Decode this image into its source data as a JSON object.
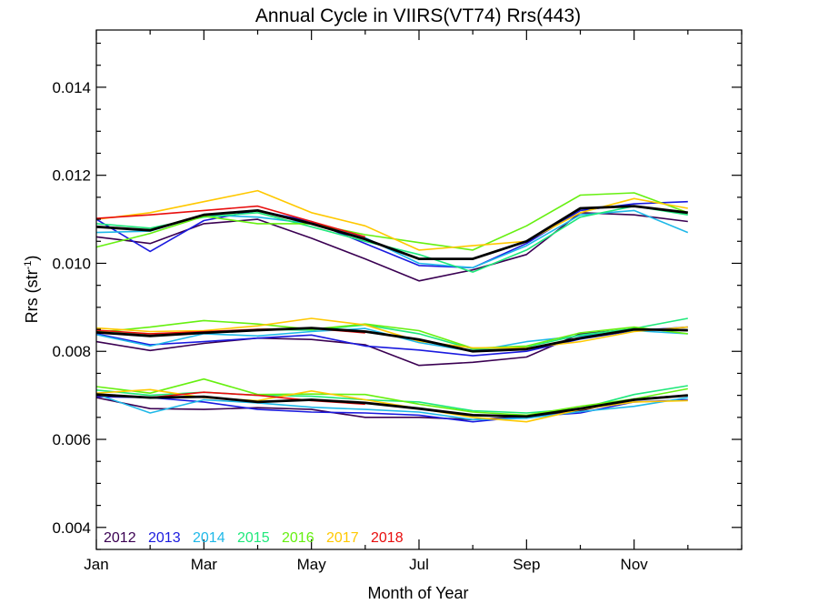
{
  "chart_data": {
    "type": "line",
    "title": "Annual Cycle in VIIRS(VT74) Rrs(443)",
    "xlabel": "Month of Year",
    "ylabel_main": "Rrs (str",
    "ylabel_sup": "-1",
    "ylabel_close": ")",
    "xlim": [
      1,
      13
    ],
    "ylim": [
      0.0035,
      0.0153
    ],
    "x_ticks": [
      {
        "x": 1,
        "label": "Jan"
      },
      {
        "x": 3,
        "label": "Mar"
      },
      {
        "x": 5,
        "label": "May"
      },
      {
        "x": 7,
        "label": "Jul"
      },
      {
        "x": 9,
        "label": "Sep"
      },
      {
        "x": 11,
        "label": "Nov"
      }
    ],
    "y_ticks": [
      {
        "y": 0.004,
        "label": "0.004"
      },
      {
        "y": 0.006,
        "label": "0.006"
      },
      {
        "y": 0.008,
        "label": "0.008"
      },
      {
        "y": 0.01,
        "label": "0.010"
      },
      {
        "y": 0.012,
        "label": "0.012"
      },
      {
        "y": 0.014,
        "label": "0.014"
      }
    ],
    "x": [
      1,
      2,
      3,
      4,
      5,
      6,
      7,
      8,
      9,
      10,
      11,
      12
    ],
    "groups": [
      {
        "series": [
          {
            "name": "2012",
            "color": "#3a0052",
            "values": [
              0.0106,
              0.01045,
              0.0109,
              0.011,
              0.01057,
              0.0101,
              0.0096,
              0.00985,
              0.0102,
              0.01115,
              0.0111,
              0.01095
            ]
          },
          {
            "name": "2013",
            "color": "#1a1adf",
            "values": [
              0.011,
              0.01027,
              0.01097,
              0.0112,
              0.01095,
              0.01045,
              0.00995,
              0.0099,
              0.01045,
              0.0112,
              0.01135,
              0.0114
            ]
          },
          {
            "name": "2014",
            "color": "#1fb8e8",
            "values": [
              0.0107,
              0.01073,
              0.0111,
              0.01105,
              0.0109,
              0.01058,
              0.01,
              0.0099,
              0.0104,
              0.0111,
              0.0112,
              0.0107
            ]
          },
          {
            "name": "2015",
            "color": "#1ee87a",
            "values": [
              0.0109,
              0.0108,
              0.01105,
              0.01115,
              0.01083,
              0.0105,
              0.0102,
              0.0098,
              0.0103,
              0.01105,
              0.0113,
              0.0111
            ]
          },
          {
            "name": "2016",
            "color": "#66f010",
            "values": [
              0.01037,
              0.01068,
              0.01107,
              0.0109,
              0.0109,
              0.01065,
              0.01047,
              0.0103,
              0.01085,
              0.01155,
              0.0116,
              0.01115
            ]
          },
          {
            "name": "2017",
            "color": "#ffc800",
            "values": [
              0.011,
              0.01115,
              0.0114,
              0.01165,
              0.01115,
              0.01085,
              0.0103,
              0.0104,
              0.0105,
              0.01115,
              0.01147,
              0.01125
            ]
          },
          {
            "name": "2018",
            "color": "#e80d0d",
            "values": [
              0.01102,
              0.0111,
              0.0112,
              0.0113,
              0.01095,
              0.0106
            ]
          },
          {
            "name": "",
            "color": "#000000",
            "width": 2.8,
            "values": [
              0.01083,
              0.01075,
              0.0111,
              0.0112,
              0.0109,
              0.01055,
              0.0101,
              0.0101,
              0.0105,
              0.01125,
              0.0113,
              0.01115
            ]
          }
        ]
      },
      {
        "series": [
          {
            "name": "2012",
            "color": "#3a0052",
            "values": [
              0.00822,
              0.00802,
              0.00818,
              0.0083,
              0.00827,
              0.00815,
              0.00768,
              0.00775,
              0.00787,
              0.0084,
              0.0085,
              0.00847
            ]
          },
          {
            "name": "2013",
            "color": "#1a1adf",
            "values": [
              0.0084,
              0.00815,
              0.00822,
              0.0083,
              0.00837,
              0.00812,
              0.00803,
              0.0079,
              0.008,
              0.00828,
              0.00847,
              0.00855
            ]
          },
          {
            "name": "2014",
            "color": "#1fb8e8",
            "values": [
              0.00838,
              0.00812,
              0.0084,
              0.00835,
              0.00845,
              0.00852,
              0.0082,
              0.008,
              0.00822,
              0.00835,
              0.00847,
              0.0084
            ]
          },
          {
            "name": "2015",
            "color": "#1ee87a",
            "values": [
              0.00845,
              0.0084,
              0.00843,
              0.0085,
              0.00848,
              0.0086,
              0.0084,
              0.00805,
              0.0081,
              0.00837,
              0.00852,
              0.00875
            ]
          },
          {
            "name": "2016",
            "color": "#66f010",
            "values": [
              0.00843,
              0.00855,
              0.0087,
              0.00862,
              0.0085,
              0.00862,
              0.00847,
              0.00807,
              0.00812,
              0.00842,
              0.00855,
              0.0084
            ]
          },
          {
            "name": "2017",
            "color": "#ffc800",
            "values": [
              0.00853,
              0.00845,
              0.00847,
              0.00858,
              0.00875,
              0.0086,
              0.00823,
              0.00808,
              0.00808,
              0.00822,
              0.00845,
              0.00855
            ]
          },
          {
            "name": "2018",
            "color": "#e80d0d",
            "values": [
              0.00848,
              0.0084,
              0.00845,
              0.0085,
              0.00852,
              0.00842
            ]
          },
          {
            "name": "",
            "color": "#000000",
            "width": 2.8,
            "values": [
              0.00843,
              0.00835,
              0.00842,
              0.00848,
              0.00853,
              0.00845,
              0.00827,
              0.008,
              0.00805,
              0.0083,
              0.0085,
              0.00848
            ]
          }
        ]
      },
      {
        "series": [
          {
            "name": "2012",
            "color": "#3a0052",
            "values": [
              0.00695,
              0.0067,
              0.00668,
              0.00672,
              0.00668,
              0.0065,
              0.0065,
              0.00645,
              0.00652,
              0.00665,
              0.00692,
              0.007
            ]
          },
          {
            "name": "2013",
            "color": "#1a1adf",
            "values": [
              0.00697,
              0.00695,
              0.00685,
              0.00668,
              0.00662,
              0.0066,
              0.00655,
              0.0064,
              0.00652,
              0.0066,
              0.00685,
              0.0069
            ]
          },
          {
            "name": "2014",
            "color": "#1fb8e8",
            "values": [
              0.00703,
              0.0066,
              0.0069,
              0.00683,
              0.00673,
              0.00668,
              0.00662,
              0.00645,
              0.00648,
              0.00663,
              0.00675,
              0.00695
            ]
          },
          {
            "name": "2015",
            "color": "#1ee87a",
            "values": [
              0.00712,
              0.007,
              0.00707,
              0.007,
              0.00698,
              0.0069,
              0.00685,
              0.00665,
              0.0066,
              0.0067,
              0.00702,
              0.00722
            ]
          },
          {
            "name": "2016",
            "color": "#66f010",
            "values": [
              0.0072,
              0.00705,
              0.00737,
              0.00702,
              0.00703,
              0.00702,
              0.0068,
              0.00662,
              0.00655,
              0.00675,
              0.00692,
              0.00715
            ]
          },
          {
            "name": "2017",
            "color": "#ffc800",
            "values": [
              0.00705,
              0.00713,
              0.00695,
              0.00688,
              0.0071,
              0.0069,
              0.0067,
              0.0065,
              0.0064,
              0.00668,
              0.00685,
              0.00688
            ]
          },
          {
            "name": "2018",
            "color": "#e80d0d",
            "values": [
              0.007,
              0.00695,
              0.00707,
              0.007,
              0.00688,
              0.0068
            ]
          },
          {
            "name": "",
            "color": "#000000",
            "width": 2.8,
            "values": [
              0.00702,
              0.00695,
              0.00697,
              0.00685,
              0.0069,
              0.00683,
              0.0067,
              0.00655,
              0.00652,
              0.0067,
              0.0069,
              0.007
            ]
          }
        ]
      }
    ],
    "legend": {
      "placement": "bottom-left",
      "entries": [
        {
          "label": "2012",
          "color": "#3a0052"
        },
        {
          "label": "2013",
          "color": "#1a1adf"
        },
        {
          "label": "2014",
          "color": "#1fb8e8"
        },
        {
          "label": "2015",
          "color": "#1ee87a"
        },
        {
          "label": "2016",
          "color": "#66f010"
        },
        {
          "label": "2017",
          "color": "#ffc800"
        },
        {
          "label": "2018",
          "color": "#e80d0d"
        }
      ]
    },
    "grid": false
  }
}
